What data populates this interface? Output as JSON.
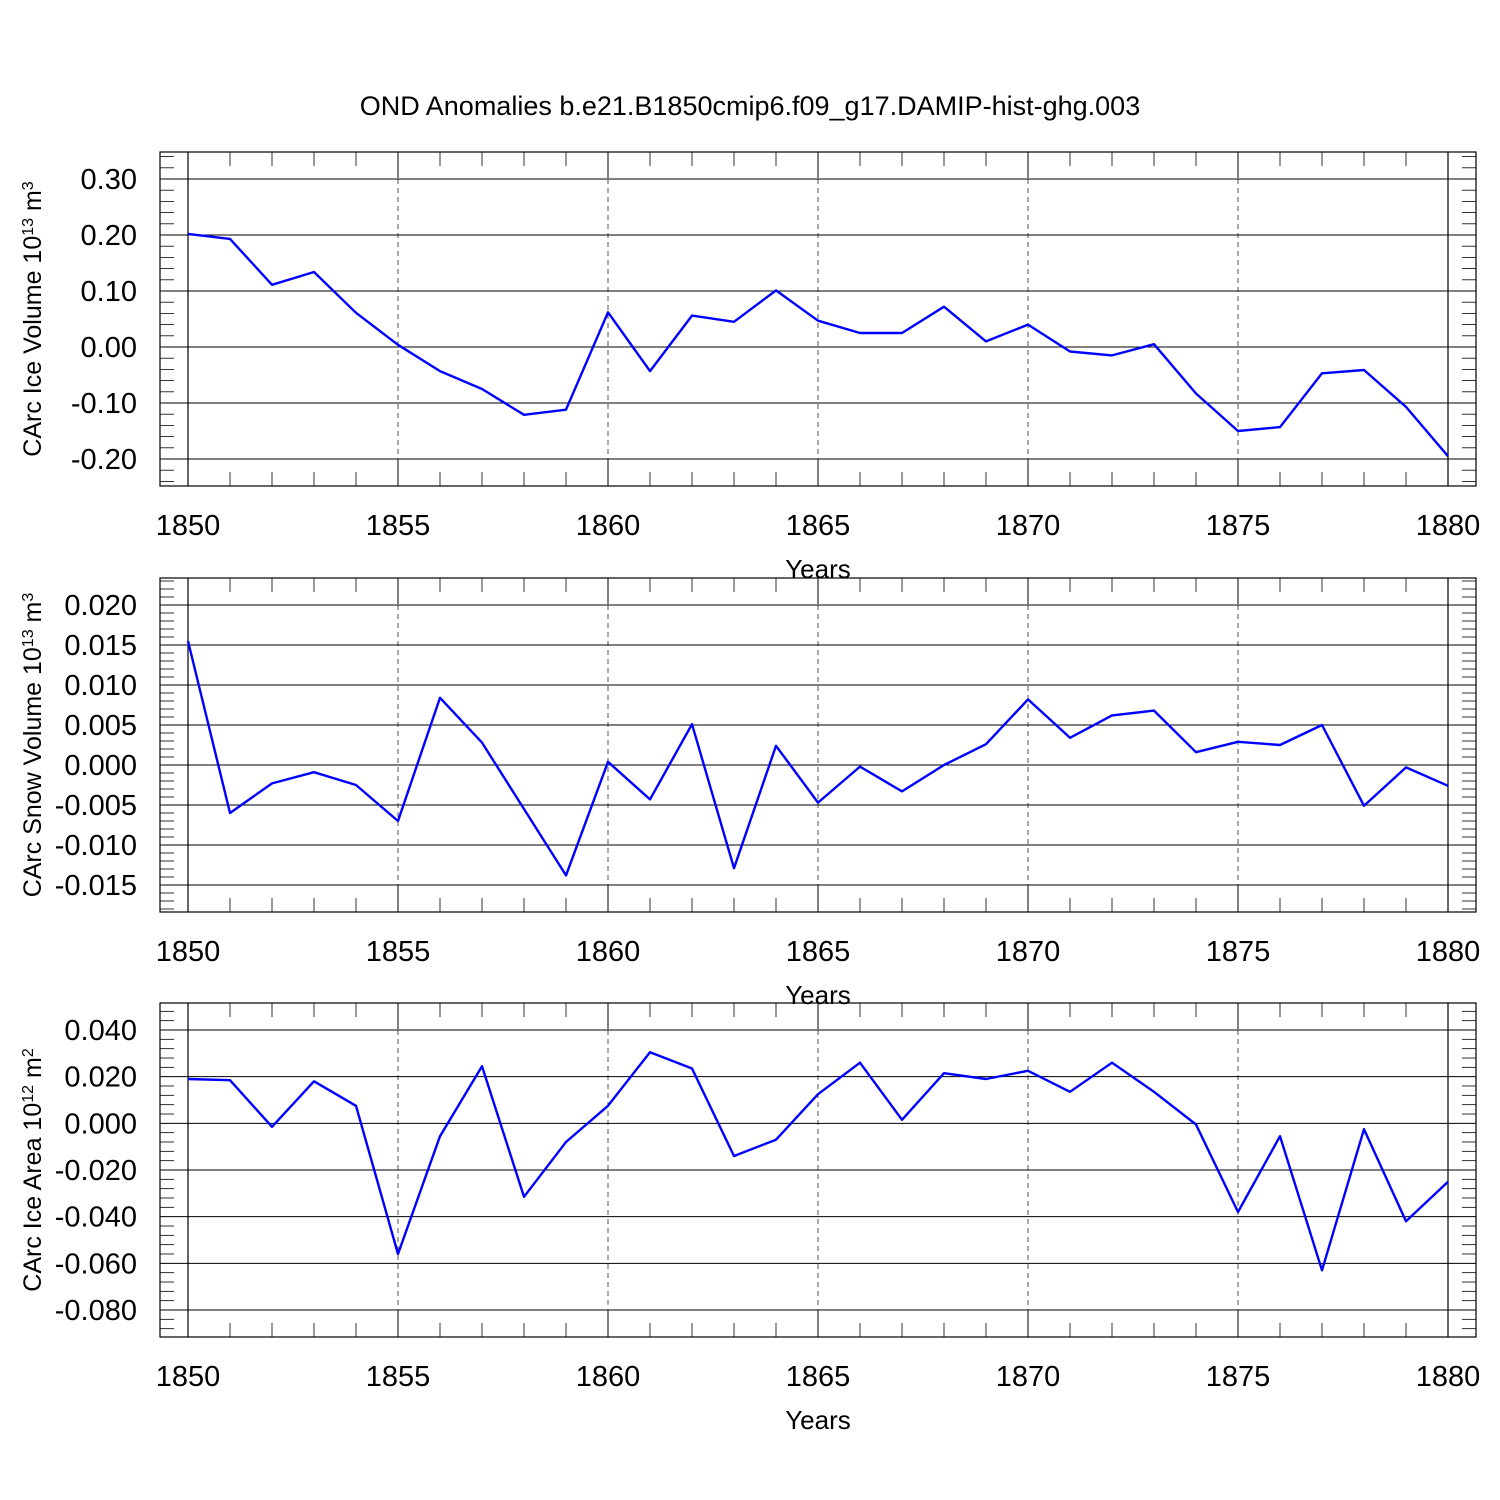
{
  "title": "OND Anomalies b.e21.B1850cmip6.f09_g17.DAMIP-hist-ghg.003",
  "line_color": "#0000ff",
  "chart_data": [
    {
      "type": "line",
      "ylabel_main": "CArc Ice Volume 10",
      "ylabel_exp": "13",
      "ylabel_unit": " m",
      "ylabel_unit_exp": "3",
      "xlabel": "Years",
      "xlim": [
        1850,
        1880
      ],
      "ylim": [
        -0.2,
        0.3
      ],
      "yticks": [
        -0.2,
        -0.1,
        0.0,
        0.1,
        0.2,
        0.3
      ],
      "ytick_labels": [
        "-0.20",
        "-0.10",
        "0.00",
        "0.10",
        "0.20",
        "0.30"
      ],
      "xticks": [
        1850,
        1855,
        1860,
        1865,
        1870,
        1875,
        1880
      ],
      "xtick_labels": [
        "1850",
        "1855",
        "1860",
        "1865",
        "1870",
        "1875",
        "1880"
      ],
      "x": [
        1850,
        1851,
        1852,
        1853,
        1854,
        1855,
        1856,
        1857,
        1858,
        1859,
        1860,
        1861,
        1862,
        1863,
        1864,
        1865,
        1866,
        1867,
        1868,
        1869,
        1870,
        1871,
        1872,
        1873,
        1874,
        1875,
        1876,
        1877,
        1878,
        1879,
        1880
      ],
      "series": [
        {
          "values": [
            0.202,
            0.193,
            0.111,
            0.134,
            0.061,
            0.004,
            -0.043,
            -0.075,
            -0.121,
            -0.112,
            0.062,
            -0.043,
            0.056,
            0.045,
            0.101,
            0.047,
            0.025,
            0.025,
            0.072,
            0.01,
            0.04,
            -0.008,
            -0.015,
            0.005,
            -0.083,
            -0.15,
            -0.143,
            -0.047,
            -0.041,
            -0.107,
            -0.195
          ]
        }
      ]
    },
    {
      "type": "line",
      "ylabel_main": "CArc Snow Volume 10",
      "ylabel_exp": "13",
      "ylabel_unit": " m",
      "ylabel_unit_exp": "3",
      "xlabel": "Years",
      "xlim": [
        1850,
        1880
      ],
      "ylim": [
        -0.015,
        0.02
      ],
      "yticks": [
        -0.015,
        -0.01,
        -0.005,
        0.0,
        0.005,
        0.01,
        0.015,
        0.02
      ],
      "ytick_labels": [
        "-0.015",
        "-0.010",
        "-0.005",
        "0.000",
        "0.005",
        "0.010",
        "0.015",
        "0.020"
      ],
      "xticks": [
        1850,
        1855,
        1860,
        1865,
        1870,
        1875,
        1880
      ],
      "xtick_labels": [
        "1850",
        "1855",
        "1860",
        "1865",
        "1870",
        "1875",
        "1880"
      ],
      "x": [
        1850,
        1851,
        1852,
        1853,
        1854,
        1855,
        1856,
        1857,
        1858,
        1859,
        1860,
        1861,
        1862,
        1863,
        1864,
        1865,
        1866,
        1867,
        1868,
        1869,
        1870,
        1871,
        1872,
        1873,
        1874,
        1875,
        1876,
        1877,
        1878,
        1879,
        1880
      ],
      "series": [
        {
          "values": [
            0.0155,
            -0.006,
            -0.0023,
            -0.0009,
            -0.0025,
            -0.007,
            0.0084,
            0.0028,
            -0.0055,
            -0.0138,
            0.0004,
            -0.0043,
            0.0051,
            -0.0129,
            0.0024,
            -0.0047,
            -0.0002,
            -0.0033,
            0.0,
            0.0026,
            0.0082,
            0.0034,
            0.0062,
            0.0068,
            0.0016,
            0.0029,
            0.0025,
            0.005,
            -0.0051,
            -0.0003,
            -0.0026
          ]
        }
      ]
    },
    {
      "type": "line",
      "ylabel_main": "CArc Ice Area 10",
      "ylabel_exp": "12",
      "ylabel_unit": " m",
      "ylabel_unit_exp": "2",
      "xlabel": "Years",
      "xlim": [
        1850,
        1880
      ],
      "ylim": [
        -0.08,
        0.04
      ],
      "yticks": [
        -0.08,
        -0.06,
        -0.04,
        -0.02,
        0.0,
        0.02,
        0.04
      ],
      "ytick_labels": [
        "-0.080",
        "-0.060",
        "-0.040",
        "-0.020",
        "0.000",
        "0.020",
        "0.040"
      ],
      "xticks": [
        1850,
        1855,
        1860,
        1865,
        1870,
        1875,
        1880
      ],
      "xtick_labels": [
        "1850",
        "1855",
        "1860",
        "1865",
        "1870",
        "1875",
        "1880"
      ],
      "x": [
        1850,
        1851,
        1852,
        1853,
        1854,
        1855,
        1856,
        1857,
        1858,
        1859,
        1860,
        1861,
        1862,
        1863,
        1864,
        1865,
        1866,
        1867,
        1868,
        1869,
        1870,
        1871,
        1872,
        1873,
        1874,
        1875,
        1876,
        1877,
        1878,
        1879,
        1880
      ],
      "series": [
        {
          "values": [
            0.019,
            0.0185,
            -0.0015,
            0.018,
            0.0075,
            -0.056,
            -0.0055,
            0.0245,
            -0.0315,
            -0.008,
            0.0075,
            0.0305,
            0.0235,
            -0.014,
            -0.007,
            0.0125,
            0.026,
            0.0015,
            0.0215,
            0.019,
            0.0225,
            0.0135,
            0.026,
            0.0135,
            -0.0005,
            -0.038,
            -0.0055,
            -0.063,
            -0.0025,
            -0.042,
            -0.025
          ]
        }
      ]
    }
  ]
}
